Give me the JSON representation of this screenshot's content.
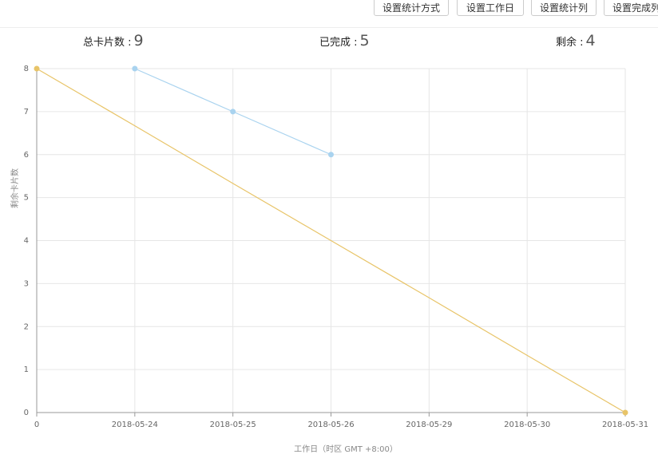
{
  "buttons": [
    "设置统计方式",
    "设置工作日",
    "设置统计列",
    "设置完成列"
  ],
  "stats": [
    {
      "label": "总卡片数 :",
      "value": "9"
    },
    {
      "label": "已完成 :",
      "value": "5"
    },
    {
      "label": "剩余 :",
      "value": "4"
    }
  ],
  "chart_data": {
    "type": "line",
    "x_label": "工作日（时区 GMT +8:00）",
    "y_label": "剩余卡片数",
    "categories": [
      "0",
      "2018-05-24",
      "2018-05-25",
      "2018-05-26",
      "2018-05-29",
      "2018-05-30",
      "2018-05-31"
    ],
    "series": [
      {
        "color": "#e8c468",
        "values": [
          8,
          6.67,
          5.33,
          4,
          2.67,
          1.33,
          0
        ]
      },
      {
        "color": "#a9d3ef",
        "values": [
          null,
          8,
          7,
          6,
          null,
          null,
          null
        ]
      }
    ],
    "ylim": [
      0,
      8
    ],
    "yticks": [
      0,
      1,
      2,
      3,
      4,
      5,
      6,
      7,
      8
    ],
    "grid": true
  }
}
